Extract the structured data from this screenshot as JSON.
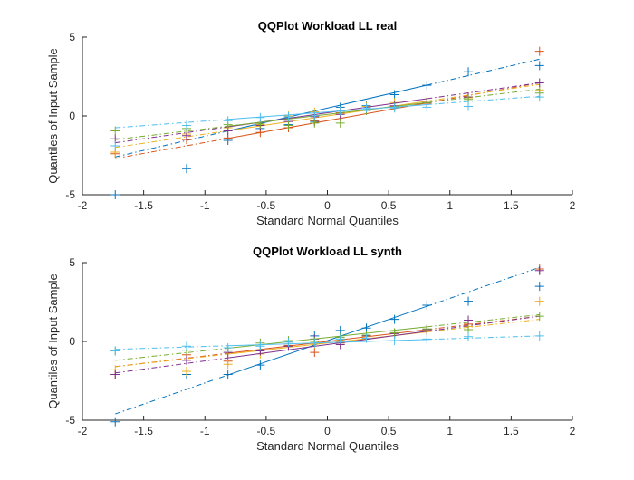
{
  "figure": {
    "background": "#ffffff",
    "axis_color": "#262626"
  },
  "chart_data": [
    {
      "type": "scatter",
      "subtype": "qqplot",
      "title": "QQPlot Workload LL real",
      "xlabel": "Standard Normal Quantiles",
      "ylabel": "Quantiles of Input Sample",
      "xlim": [
        -2,
        2
      ],
      "ylim": [
        -5,
        5
      ],
      "xticks": [
        "-2",
        "-1.5",
        "-1",
        "-0.5",
        "0",
        "0.5",
        "1",
        "1.5",
        "2"
      ],
      "yticks": [
        "-5",
        "0",
        "5"
      ],
      "grid": false,
      "legend": "none",
      "x": [
        -1.732,
        -1.15,
        -0.812,
        -0.548,
        -0.318,
        -0.105,
        0.105,
        0.318,
        0.548,
        0.812,
        1.15,
        1.732
      ],
      "series": [
        {
          "color": "#0072BD",
          "values": [
            -5.0,
            -3.35,
            -1.55,
            -0.8,
            -0.55,
            -0.35,
            0.55,
            0.65,
            1.35,
            1.95,
            2.8,
            3.2
          ],
          "fit": [
            -2.6,
            3.6
          ]
        },
        {
          "color": "#D95319",
          "values": [
            -2.4,
            -1.5,
            -1.4,
            -1.05,
            -0.75,
            -0.3,
            0.2,
            0.4,
            0.6,
            0.8,
            1.2,
            4.1
          ],
          "fit": [
            -2.7,
            2.1
          ]
        },
        {
          "color": "#EDB120",
          "values": [
            -2.3,
            -1.15,
            -0.75,
            -0.55,
            0.0,
            0.25,
            0.3,
            0.6,
            0.85,
            0.95,
            1.15,
            1.65
          ],
          "fit": [
            -2.0,
            2.0
          ]
        },
        {
          "color": "#7E2F8E",
          "values": [
            -1.45,
            -1.25,
            -0.95,
            -0.6,
            -0.35,
            -0.05,
            0.1,
            0.35,
            0.65,
            0.85,
            1.2,
            2.1
          ],
          "fit": [
            -1.7,
            2.1
          ]
        },
        {
          "color": "#77AC30",
          "values": [
            -0.95,
            -0.8,
            -0.55,
            -0.5,
            -0.6,
            -0.45,
            -0.45,
            0.35,
            0.55,
            0.85,
            1.05,
            1.45
          ],
          "fit": [
            -1.5,
            1.7
          ]
        },
        {
          "color": "#4DBEEE",
          "values": [
            -1.9,
            -0.6,
            -0.3,
            -0.1,
            -0.05,
            0.0,
            0.3,
            0.5,
            0.5,
            0.55,
            0.6,
            1.2
          ],
          "fit": [
            -0.75,
            1.25
          ]
        }
      ]
    },
    {
      "type": "scatter",
      "subtype": "qqplot",
      "title": "QQPlot Workload LL synth",
      "xlabel": "Standard Normal Quantiles",
      "ylabel": "Quantiles of Input Sample",
      "xlim": [
        -2,
        2
      ],
      "ylim": [
        -5,
        5
      ],
      "xticks": [
        "-2",
        "-1.5",
        "-1",
        "-0.5",
        "0",
        "0.5",
        "1",
        "1.5",
        "2"
      ],
      "yticks": [
        "-5",
        "0",
        "5"
      ],
      "grid": false,
      "legend": "none",
      "x": [
        -1.732,
        -1.15,
        -0.812,
        -0.548,
        -0.318,
        -0.105,
        0.105,
        0.318,
        0.548,
        0.812,
        1.15,
        1.732
      ],
      "series": [
        {
          "color": "#0072BD",
          "values": [
            -5.1,
            -2.1,
            -2.1,
            -1.5,
            -0.3,
            0.35,
            0.7,
            0.85,
            1.4,
            2.3,
            2.55,
            3.5
          ],
          "fit": [
            -4.6,
            4.7
          ]
        },
        {
          "color": "#D95319",
          "values": [
            -2.1,
            -0.85,
            -1.25,
            -0.55,
            -0.25,
            -0.7,
            -0.1,
            0.2,
            0.5,
            0.7,
            1.1,
            4.6
          ],
          "fit": [
            -1.6,
            1.6
          ]
        },
        {
          "color": "#EDB120",
          "values": [
            -1.8,
            -1.9,
            -1.45,
            -0.8,
            0.05,
            -0.15,
            0.05,
            0.3,
            0.5,
            0.7,
            0.95,
            2.55
          ],
          "fit": [
            -1.6,
            1.4
          ]
        },
        {
          "color": "#7E2F8E",
          "values": [
            -2.1,
            -1.2,
            -0.7,
            -0.6,
            -0.3,
            0.15,
            -0.2,
            0.35,
            0.5,
            0.75,
            1.35,
            4.5
          ],
          "fit": [
            -2.0,
            1.6
          ]
        },
        {
          "color": "#77AC30",
          "values": [
            -0.6,
            -0.55,
            -0.55,
            -0.1,
            0.05,
            0.0,
            0.25,
            0.4,
            0.55,
            0.8,
            0.75,
            1.6
          ],
          "fit": [
            -1.2,
            1.7
          ]
        },
        {
          "color": "#4DBEEE",
          "values": [
            -0.6,
            -0.3,
            -0.4,
            -0.3,
            -0.05,
            -0.1,
            0.15,
            0.2,
            0.05,
            0.15,
            0.3,
            0.35
          ],
          "fit": [
            -0.5,
            0.35
          ]
        }
      ]
    }
  ]
}
